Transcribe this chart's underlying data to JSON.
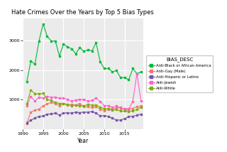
{
  "title": "Hate Crimes Over the Years by Top 5 Bias Types",
  "xlabel": "Year",
  "ylabel": "",
  "legend_title": "BIAS_DESC",
  "background_color": "#EBEBEB",
  "grid_color": "white",
  "series": {
    "Anti-Black or African America": {
      "color": "#00BA38",
      "marker_color": "#00BA38",
      "years": [
        1991,
        1992,
        1993,
        1994,
        1995,
        1996,
        1997,
        1998,
        1999,
        2000,
        2001,
        2002,
        2003,
        2004,
        2005,
        2006,
        2007,
        2008,
        2009,
        2010,
        2011,
        2012,
        2013,
        2014,
        2015,
        2016,
        2017,
        2018,
        2019
      ],
      "values": [
        1600,
        2300,
        2200,
        2980,
        3560,
        3140,
        2980,
        2980,
        2470,
        2880,
        2780,
        2720,
        2550,
        2760,
        2630,
        2680,
        2650,
        2920,
        2280,
        2050,
        2050,
        1940,
        1980,
        1740,
        1740,
        1670,
        2050,
        1880,
        1930
      ]
    },
    "Anti-Gay (Male)": {
      "color": "#F8766D",
      "marker_color": "#F8766D",
      "years": [
        1991,
        1992,
        1993,
        1994,
        1995,
        1996,
        1997,
        1998,
        1999,
        2000,
        2001,
        2002,
        2003,
        2004,
        2005,
        2006,
        2007,
        2008,
        2009,
        2010,
        2011,
        2012,
        2013,
        2014,
        2015,
        2016,
        2017,
        2018,
        2019
      ],
      "values": [
        200,
        580,
        640,
        680,
        790,
        860,
        900,
        870,
        790,
        870,
        810,
        830,
        810,
        870,
        760,
        760,
        730,
        760,
        680,
        630,
        660,
        680,
        720,
        750,
        640,
        690,
        700,
        760,
        790
      ]
    },
    "Anti-Hispanic or Latino": {
      "color": "#7B52AB",
      "marker_color": "#7B52AB",
      "years": [
        1991,
        1992,
        1993,
        1994,
        1995,
        1996,
        1997,
        1998,
        1999,
        2000,
        2001,
        2002,
        2003,
        2004,
        2005,
        2006,
        2007,
        2008,
        2009,
        2010,
        2011,
        2012,
        2013,
        2014,
        2015,
        2016,
        2017,
        2018,
        2019
      ],
      "values": [
        220,
        300,
        380,
        430,
        450,
        510,
        520,
        540,
        480,
        540,
        560,
        540,
        580,
        560,
        580,
        570,
        600,
        540,
        450,
        460,
        430,
        370,
        310,
        310,
        360,
        420,
        440,
        470,
        510
      ]
    },
    "Anti-Jewish": {
      "color": "#FF61CC",
      "marker_color": "#FF61CC",
      "years": [
        1991,
        1992,
        1993,
        1994,
        1995,
        1996,
        1997,
        1998,
        1999,
        2000,
        2001,
        2002,
        2003,
        2004,
        2005,
        2006,
        2007,
        2008,
        2009,
        2010,
        2011,
        2012,
        2013,
        2014,
        2015,
        2016,
        2017,
        2018,
        2019
      ],
      "values": [
        800,
        1100,
        950,
        1070,
        1050,
        1110,
        1080,
        1080,
        1050,
        1050,
        1000,
        960,
        990,
        1000,
        1000,
        960,
        970,
        1050,
        930,
        800,
        800,
        730,
        790,
        700,
        700,
        680,
        940,
        1880,
        950
      ]
    },
    "Anti-White": {
      "color": "#7CAE00",
      "marker_color": "#7CAE00",
      "years": [
        1991,
        1992,
        1993,
        1994,
        1995,
        1996,
        1997,
        1998,
        1999,
        2000,
        2001,
        2002,
        2003,
        2004,
        2005,
        2006,
        2007,
        2008,
        2009,
        2010,
        2011,
        2012,
        2013,
        2014,
        2015,
        2016,
        2017,
        2018,
        2019
      ],
      "values": [
        860,
        1320,
        1200,
        1200,
        1210,
        1010,
        970,
        900,
        870,
        870,
        830,
        800,
        820,
        790,
        790,
        830,
        810,
        820,
        740,
        690,
        700,
        650,
        660,
        610,
        610,
        600,
        620,
        660,
        750
      ]
    }
  },
  "xlim": [
    1990,
    2019.5
  ],
  "ylim": [
    0,
    3750
  ],
  "yticks": [
    1000,
    2000,
    3000
  ],
  "xticks": [
    1990,
    1995,
    2000,
    2005,
    2010,
    2015
  ]
}
